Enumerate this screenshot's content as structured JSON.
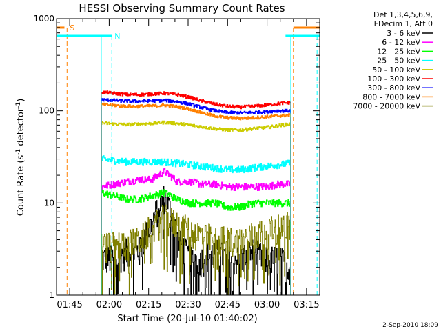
{
  "chart_data": {
    "type": "line",
    "title": "HESSI Observing Summary Count Rates",
    "xlabel": "Start Time (20-Jul-10 01:40:02)",
    "ylabel_main": "Count Rate (s",
    "ylabel_sup1": "-1",
    "ylabel_mid": " detector",
    "ylabel_sup2": "-1",
    "ylabel_end": ")",
    "y_scale": "log",
    "ylim": [
      1,
      1000
    ],
    "xlim_minutes": [
      0,
      100
    ],
    "x_ticks": [
      {
        "minutes": 5,
        "label": "01:45"
      },
      {
        "minutes": 20,
        "label": "02:00"
      },
      {
        "minutes": 35,
        "label": "02:15"
      },
      {
        "minutes": 50,
        "label": "02:30"
      },
      {
        "minutes": 65,
        "label": "02:45"
      },
      {
        "minutes": 80,
        "label": "03:00"
      },
      {
        "minutes": 95,
        "label": "03:15"
      }
    ],
    "y_ticks": [
      {
        "value": 1,
        "label": "1"
      },
      {
        "value": 10,
        "label": "10"
      },
      {
        "value": 100,
        "label": "100"
      },
      {
        "value": 1000,
        "label": "1000"
      }
    ],
    "legend_header": [
      "Det 1,3,4,5,6,9,",
      "FDecim 1, Att 0"
    ],
    "legend_placement": "right",
    "date_stamp": "2-Sep-2010 18:09",
    "data_window_minutes": [
      17,
      89
    ],
    "series": [
      {
        "name": "3 - 6 keV",
        "color": "#000000",
        "approx_values": [
          2.5,
          2.5,
          3,
          3,
          6,
          12,
          4,
          2.5,
          2.5,
          3,
          2.5,
          2.5,
          3,
          2.5,
          2.5,
          2
        ]
      },
      {
        "name": "6 - 12 keV",
        "color": "#ff00ff",
        "approx_values": [
          15,
          16,
          17,
          18,
          18,
          22,
          17,
          17,
          16,
          16,
          15,
          15,
          15,
          15,
          16,
          16
        ]
      },
      {
        "name": "12 - 25 keV",
        "color": "#00ff00",
        "approx_values": [
          13,
          12,
          11,
          11,
          12,
          13,
          11,
          10,
          10,
          10,
          9,
          9,
          10,
          10,
          10,
          10
        ]
      },
      {
        "name": "25 - 50 keV",
        "color": "#00ffff",
        "approx_values": [
          30,
          29,
          28,
          28,
          28,
          28,
          27,
          26,
          25,
          24,
          23,
          23,
          24,
          25,
          26,
          27
        ]
      },
      {
        "name": "50 - 100 keV",
        "color": "#cccc00",
        "approx_values": [
          74,
          72,
          71,
          72,
          73,
          75,
          73,
          70,
          67,
          64,
          62,
          62,
          64,
          66,
          69,
          72
        ]
      },
      {
        "name": "100 - 300 keV",
        "color": "#ff0000",
        "approx_values": [
          160,
          155,
          150,
          150,
          152,
          155,
          150,
          140,
          127,
          118,
          112,
          110,
          112,
          115,
          120,
          123
        ]
      },
      {
        "name": "300 - 800 keV",
        "color": "#0000ff",
        "approx_values": [
          132,
          130,
          127,
          127,
          128,
          130,
          126,
          118,
          108,
          100,
          96,
          95,
          96,
          98,
          100,
          100
        ]
      },
      {
        "name": "800 - 7000 keV",
        "color": "#ff8000",
        "approx_values": [
          117,
          115,
          112,
          112,
          113,
          115,
          111,
          104,
          95,
          88,
          84,
          83,
          84,
          86,
          88,
          90
        ]
      },
      {
        "name": "7000 - 20000 keV",
        "color": "#808000",
        "approx_values": [
          3.5,
          3.5,
          3.7,
          4,
          5.5,
          7,
          6,
          5,
          4.5,
          4.2,
          4,
          4,
          4.5,
          5,
          5.5,
          6
        ]
      }
    ],
    "flags": [
      {
        "label": "S",
        "color": "#ff8000",
        "levels": [
          {
            "minutes": [
              0,
              3
            ],
            "value": 800
          },
          {
            "minutes": [
              90,
              100
            ],
            "value": 800
          }
        ],
        "dashed_markers_minutes": [
          4,
          90
        ]
      },
      {
        "label": "N",
        "color": "#00ffff",
        "levels": [
          {
            "minutes": [
              0,
              21
            ],
            "value": 650
          },
          {
            "minutes": [
              87,
              100
            ],
            "value": 650
          }
        ],
        "dashed_markers_minutes": [
          21,
          99
        ]
      }
    ]
  }
}
